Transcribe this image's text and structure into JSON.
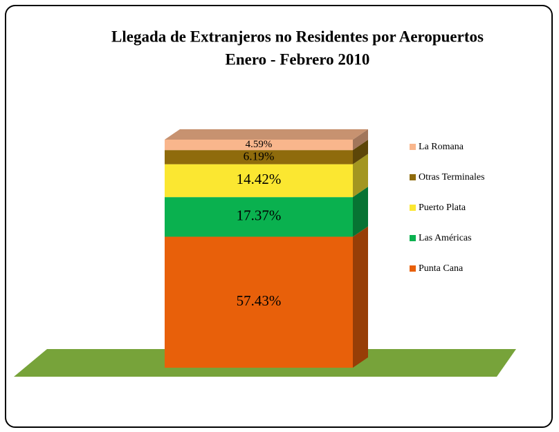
{
  "chart_data": {
    "type": "stacked_bar_3d",
    "title": [
      "Llegada de Extranjeros no Residentes por Aeropuertos",
      "Enero - Febrero 2010"
    ],
    "series": [
      {
        "name": "Punta Cana",
        "color": "#e8600a",
        "values": [
          57.43
        ],
        "value_labels": [
          "57.43%"
        ]
      },
      {
        "name": "Las Américas",
        "color": "#0ab14f",
        "values": [
          17.37
        ],
        "value_labels": [
          "17.37%"
        ]
      },
      {
        "name": "Puerto Plata",
        "color": "#fbe731",
        "values": [
          14.42
        ],
        "value_labels": [
          "14.42%"
        ]
      },
      {
        "name": "Otras Terminales",
        "color": "#8f6b0c",
        "values": [
          6.19
        ],
        "value_labels": [
          "6.19%"
        ]
      },
      {
        "name": "La Romana",
        "color": "#f9b68c",
        "values": [
          4.59
        ],
        "value_labels": [
          "4.59%"
        ]
      }
    ],
    "floor_color": "#77a33a"
  }
}
